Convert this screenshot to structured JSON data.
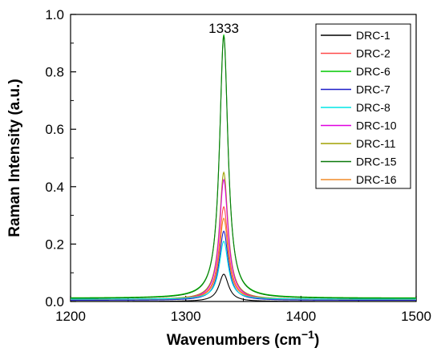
{
  "chart_data": {
    "type": "line",
    "xlabel": "Wavenumbers (cm",
    "xlabel_superscript": "−1",
    "xlabel_close": ")",
    "ylabel": "Raman Intensity (a.u.)",
    "xlim": [
      1200,
      1500
    ],
    "ylim": [
      0.0,
      1.0
    ],
    "x_ticks": [
      "1200",
      "1300",
      "1400",
      "1500"
    ],
    "y_ticks": [
      "0.0",
      "0.2",
      "0.4",
      "0.6",
      "0.8",
      "1.0"
    ],
    "annotation": {
      "text": "1333",
      "x": 1333,
      "y": 0.975
    },
    "grid": false,
    "legend_position": "top-right",
    "peak_center": 1333,
    "series": [
      {
        "name": "DRC-1",
        "color": "#000000",
        "peak": 0.095,
        "baseline": 0.0,
        "width": 5.0
      },
      {
        "name": "DRC-2",
        "color": "#ff4a4a",
        "peak": 0.33,
        "baseline": 0.006,
        "width": 4.6
      },
      {
        "name": "DRC-6",
        "color": "#00c800",
        "peak": 0.93,
        "baseline": 0.012,
        "width": 4.4
      },
      {
        "name": "DRC-7",
        "color": "#1e1ec8",
        "peak": 0.245,
        "baseline": 0.004,
        "width": 4.6
      },
      {
        "name": "DRC-8",
        "color": "#00e5e5",
        "peak": 0.21,
        "baseline": 0.008,
        "width": 4.6
      },
      {
        "name": "DRC-10",
        "color": "#e000e0",
        "peak": 0.425,
        "baseline": 0.005,
        "width": 4.5
      },
      {
        "name": "DRC-11",
        "color": "#a0a000",
        "peak": 0.45,
        "baseline": 0.007,
        "width": 4.5
      },
      {
        "name": "DRC-15",
        "color": "#0a780a",
        "peak": 0.925,
        "baseline": 0.01,
        "width": 4.4
      },
      {
        "name": "DRC-16",
        "color": "#f08c28",
        "peak": 0.29,
        "baseline": 0.006,
        "width": 4.6
      }
    ]
  }
}
